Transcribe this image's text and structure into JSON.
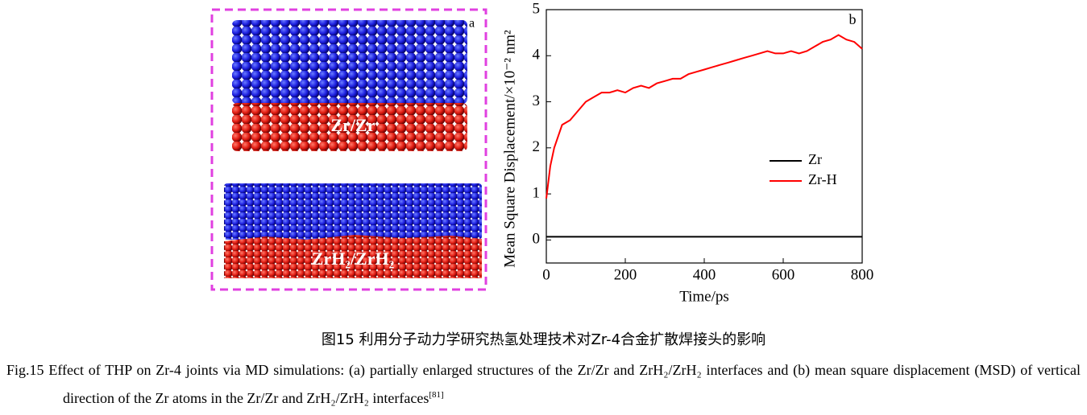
{
  "figure_a": {
    "panel_label": "a",
    "top_label": "Zr/Zr",
    "bottom_label": "ZrH₂/ZrH₂"
  },
  "chart_data": {
    "type": "line",
    "panel_label": "b",
    "x_label": "Time/ps",
    "y_label": "Mean Square Displacement/×10⁻² nm²",
    "x": [
      0,
      10,
      20,
      40,
      60,
      80,
      100,
      120,
      140,
      160,
      180,
      200,
      220,
      240,
      260,
      280,
      300,
      320,
      340,
      360,
      380,
      400,
      420,
      440,
      460,
      480,
      500,
      520,
      540,
      560,
      580,
      600,
      620,
      640,
      660,
      680,
      700,
      720,
      740,
      760,
      780,
      800
    ],
    "series": [
      {
        "name": "Zr",
        "color": "#000000",
        "values": [
          0.07,
          0.07,
          0.07,
          0.07,
          0.07,
          0.07,
          0.07,
          0.07,
          0.07,
          0.07,
          0.07,
          0.07,
          0.07,
          0.07,
          0.07,
          0.07,
          0.07,
          0.07,
          0.07,
          0.07,
          0.07,
          0.07,
          0.07,
          0.07,
          0.07,
          0.07,
          0.07,
          0.07,
          0.07,
          0.07,
          0.07,
          0.07,
          0.07,
          0.07,
          0.07,
          0.07,
          0.07,
          0.07,
          0.07,
          0.07,
          0.07,
          0.07
        ]
      },
      {
        "name": "Zr-H",
        "color": "#ff0000",
        "values": [
          0.9,
          1.6,
          2.0,
          2.5,
          2.6,
          2.8,
          3.0,
          3.1,
          3.2,
          3.2,
          3.25,
          3.2,
          3.3,
          3.35,
          3.3,
          3.4,
          3.45,
          3.5,
          3.5,
          3.6,
          3.65,
          3.7,
          3.75,
          3.8,
          3.85,
          3.9,
          3.95,
          4.0,
          4.05,
          4.1,
          4.05,
          4.05,
          4.1,
          4.05,
          4.1,
          4.2,
          4.3,
          4.35,
          4.45,
          4.35,
          4.3,
          4.15
        ]
      }
    ],
    "xlim": [
      0,
      800
    ],
    "xticks": [
      0,
      200,
      400,
      600,
      800
    ],
    "ylim": [
      -0.5,
      5
    ],
    "yticks": [
      0,
      1,
      2,
      3,
      4,
      5
    ],
    "grid": false
  },
  "caption": {
    "chinese": "图15 利用分子动力学研究热氢处理技术对Zr-4合金扩散焊接头的影响",
    "english": "Fig.15 Effect of THP on Zr-4 joints via MD simulations: (a) partially enlarged structures of the Zr/Zr and ZrH₂/ZrH₂ interfaces and (b) mean square displacement (MSD) of vertical direction of the Zr atoms in the Zr/Zr and ZrH₂/ZrH₂ interfaces",
    "reference": "[81]"
  }
}
